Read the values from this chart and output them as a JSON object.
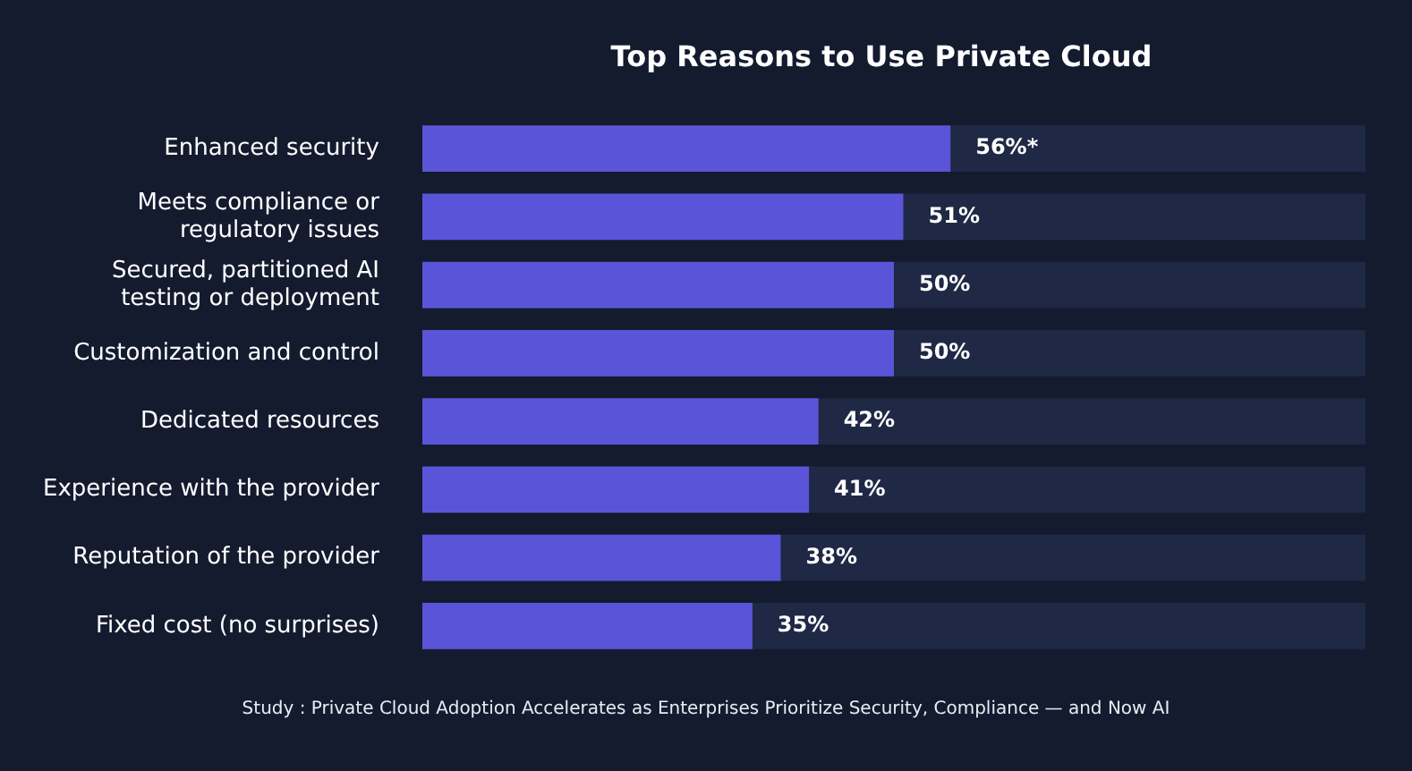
{
  "chart_data": {
    "type": "bar",
    "orientation": "horizontal",
    "title": "Top Reasons to Use Private Cloud",
    "categories": [
      "Enhanced security",
      "Meets compliance or regulatory issues",
      "Secured, partitioned AI testing or deployment",
      "Customization and control",
      "Dedicated resources",
      "Experience with the provider",
      "Reputation of the provider",
      "Fixed cost (no surprises)"
    ],
    "values": [
      56,
      51,
      50,
      50,
      42,
      41,
      38,
      35
    ],
    "value_labels": [
      "56%*",
      "51%",
      "50%",
      "50%",
      "42%",
      "41%",
      "38%",
      "35%"
    ],
    "color": "#5a55d8",
    "xlim": [
      0,
      100
    ],
    "grid": false,
    "legend": false,
    "tick_labels": "y",
    "annotations": [
      "Study : Private Cloud Adoption Accelerates as Enterprises Prioritize Security, Compliance — and Now AI"
    ]
  }
}
